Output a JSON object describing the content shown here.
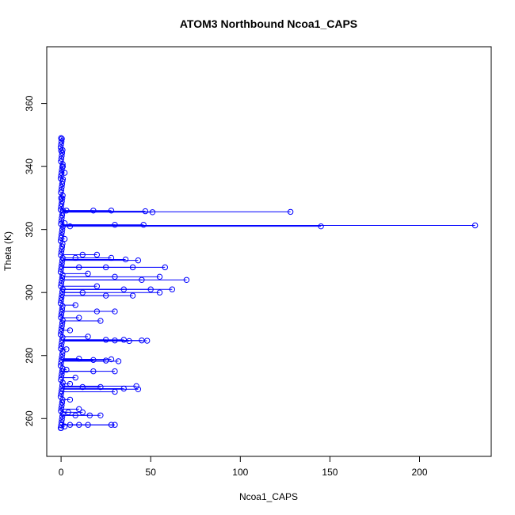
{
  "chart_data": {
    "type": "scatter",
    "title": "ATOM3 Northbound Ncoa1_CAPS",
    "xlabel": "Ncoa1_CAPS",
    "ylabel": "Theta (K)",
    "xlim": [
      -8,
      240
    ],
    "ylim": [
      248,
      378
    ],
    "xticks": [
      0,
      50,
      100,
      150,
      200
    ],
    "yticks": [
      260,
      280,
      300,
      320,
      340,
      360
    ],
    "grid": false,
    "legend": "none",
    "series_color": "#0000ff",
    "marker": "open-circle-with-lines",
    "points": [
      [
        0,
        349
      ],
      [
        0,
        345
      ],
      [
        1,
        340
      ],
      [
        1,
        336
      ],
      [
        2,
        338
      ],
      [
        0,
        330
      ],
      [
        1,
        326
      ],
      [
        3,
        326
      ],
      [
        18,
        326
      ],
      [
        28,
        326
      ],
      [
        47,
        325.8
      ],
      [
        51,
        325.5
      ],
      [
        128,
        325.6
      ],
      [
        2,
        322
      ],
      [
        5,
        321
      ],
      [
        30,
        321.5
      ],
      [
        46,
        321.5
      ],
      [
        145,
        321
      ],
      [
        231,
        321.3
      ],
      [
        2,
        317
      ],
      [
        8,
        311
      ],
      [
        12,
        312
      ],
      [
        20,
        312
      ],
      [
        28,
        311
      ],
      [
        36,
        310.5
      ],
      [
        43,
        310.2
      ],
      [
        10,
        308
      ],
      [
        25,
        308
      ],
      [
        40,
        308
      ],
      [
        58,
        308
      ],
      [
        15,
        306
      ],
      [
        30,
        305
      ],
      [
        45,
        304
      ],
      [
        55,
        305
      ],
      [
        70,
        304
      ],
      [
        20,
        302
      ],
      [
        35,
        301
      ],
      [
        50,
        301
      ],
      [
        62,
        301
      ],
      [
        55,
        300
      ],
      [
        40,
        299
      ],
      [
        25,
        299
      ],
      [
        12,
        300
      ],
      [
        8,
        296
      ],
      [
        20,
        294
      ],
      [
        30,
        294
      ],
      [
        10,
        292
      ],
      [
        22,
        291
      ],
      [
        5,
        288
      ],
      [
        15,
        286
      ],
      [
        25,
        285
      ],
      [
        35,
        285
      ],
      [
        45,
        284.8
      ],
      [
        48,
        284.7
      ],
      [
        38,
        284.6
      ],
      [
        30,
        284.8
      ],
      [
        3,
        282
      ],
      [
        10,
        279
      ],
      [
        18,
        278.6
      ],
      [
        25,
        278.4
      ],
      [
        32,
        278.2
      ],
      [
        28,
        278.8
      ],
      [
        3,
        275.5
      ],
      [
        18,
        275
      ],
      [
        30,
        275
      ],
      [
        8,
        273
      ],
      [
        5,
        271
      ],
      [
        12,
        270
      ],
      [
        22,
        270
      ],
      [
        35,
        269.5
      ],
      [
        42,
        270.3
      ],
      [
        43,
        269.3
      ],
      [
        30,
        268.5
      ],
      [
        5,
        266
      ],
      [
        10,
        263
      ],
      [
        12,
        262
      ],
      [
        4,
        262
      ],
      [
        8,
        261
      ],
      [
        16,
        261
      ],
      [
        22,
        261
      ],
      [
        5,
        258
      ],
      [
        10,
        258
      ],
      [
        15,
        258
      ],
      [
        28,
        258
      ],
      [
        30,
        258
      ],
      [
        2,
        257.5
      ],
      [
        0,
        257
      ]
    ]
  }
}
